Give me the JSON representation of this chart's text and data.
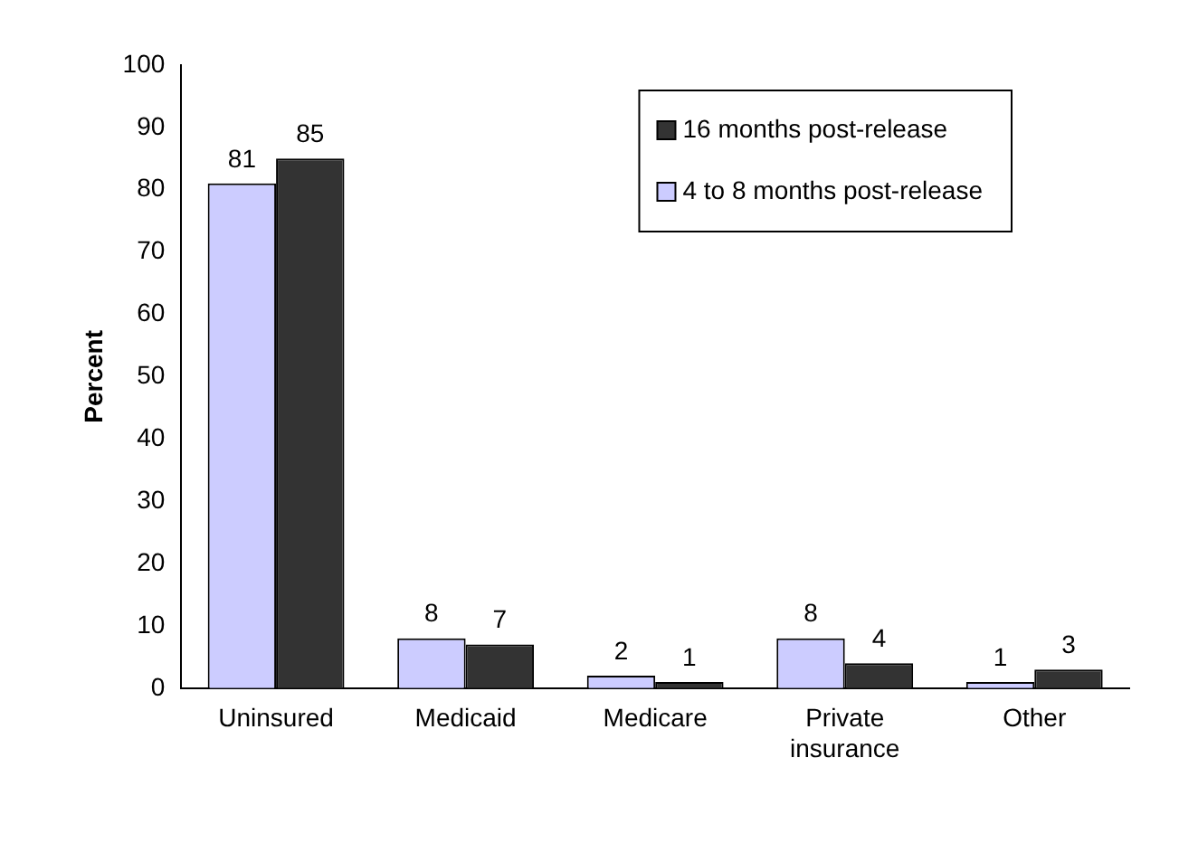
{
  "chart_data": {
    "type": "bar",
    "categories": [
      "Uninsured",
      "Medicaid",
      "Medicare",
      "Private insurance",
      "Other"
    ],
    "series": [
      {
        "name": "4 to 8 months post-release",
        "color": "#ccccff",
        "values": [
          81,
          8,
          2,
          8,
          1
        ]
      },
      {
        "name": "16 months post-release",
        "color": "#333333",
        "values": [
          85,
          7,
          1,
          4,
          3
        ]
      }
    ],
    "ylabel": "Percent",
    "ylim": [
      0,
      100
    ],
    "yticks": [
      0,
      10,
      20,
      30,
      40,
      50,
      60,
      70,
      80,
      90,
      100
    ],
    "grid": false,
    "legend": "top right",
    "data_labels": true
  }
}
